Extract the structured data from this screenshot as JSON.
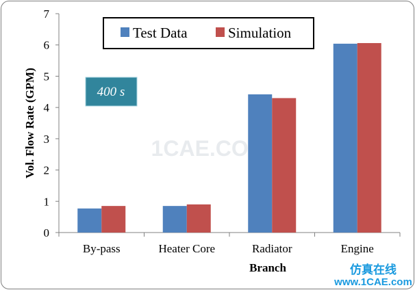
{
  "chart_data": {
    "type": "bar",
    "title": "",
    "xlabel": "Branch",
    "ylabel": "Vol. Flow Rate (GPM)",
    "categories": [
      "By-pass",
      "Heater Core",
      "Radiator",
      "Engine"
    ],
    "series": [
      {
        "name": "Test Data",
        "values": [
          0.77,
          0.85,
          4.42,
          6.04
        ]
      },
      {
        "name": "Simulation",
        "values": [
          0.85,
          0.9,
          4.3,
          6.06
        ]
      }
    ],
    "ylim": [
      0,
      7
    ],
    "yticks": [
      "0",
      "1",
      "2",
      "3",
      "4",
      "5",
      "6",
      "7"
    ],
    "grid": false,
    "legend_position": "top",
    "annotation": "400 s",
    "colors": {
      "test": "#4f81bd",
      "sim": "#c0504d",
      "annotation_bg": "#31859c"
    }
  },
  "watermark": "1CAE.COM",
  "branding": {
    "cn": "仿真在线",
    "url": "www.1CAE.com"
  }
}
